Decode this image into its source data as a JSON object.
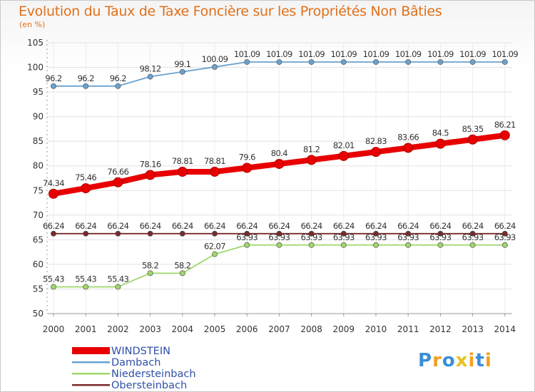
{
  "header": {
    "title": "Evolution du Taux de Taxe Foncière sur les Propriétés Non Bâties",
    "unit": "(en %)"
  },
  "logo": {
    "letters": [
      "P",
      "r",
      "o",
      "x",
      "i",
      "t",
      "i"
    ],
    "colors": [
      "#3a8fd6",
      "#f0a020",
      "#3a8fd6",
      "#e8c020",
      "#f0a020",
      "#3a8fd6",
      "#f0a020"
    ]
  },
  "chart_data": {
    "type": "line",
    "title": "Evolution du Taux de Taxe Foncière sur les Propriétés Non Bâties",
    "ylabel": "(en %)",
    "xlabel": "",
    "x": [
      "2000",
      "2001",
      "2002",
      "2003",
      "2004",
      "2005",
      "2006",
      "2007",
      "2008",
      "2009",
      "2010",
      "2011",
      "2012",
      "2013",
      "2014"
    ],
    "ylim": [
      50,
      105
    ],
    "yticks": [
      50,
      55,
      60,
      65,
      70,
      75,
      80,
      85,
      90,
      95,
      100,
      105
    ],
    "grid": true,
    "legend_position": "bottom-left",
    "series": [
      {
        "name": "WINDSTEIN",
        "color": "#e80000",
        "values": [
          74.34,
          75.46,
          76.66,
          78.16,
          78.81,
          78.81,
          79.6,
          80.4,
          81.2,
          82.01,
          82.83,
          83.66,
          84.5,
          85.35,
          86.21
        ],
        "labels": [
          "74.34",
          "75.46",
          "76.66",
          "78.16",
          "78.81",
          "78.81",
          "79.6",
          "80.4",
          "81.2",
          "82.01",
          "82.83",
          "83.66",
          "84.5",
          "85.35",
          "86.21"
        ]
      },
      {
        "name": "Dambach",
        "color": "#6aa2cf",
        "values": [
          96.2,
          96.2,
          96.2,
          98.12,
          99.1,
          100.09,
          101.09,
          101.09,
          101.09,
          101.09,
          101.09,
          101.09,
          101.09,
          101.09,
          101.09
        ],
        "labels": [
          "96.2",
          "96.2",
          "96.2",
          "98.12",
          "99.1",
          "100.09",
          "101.09",
          "101.09",
          "101.09",
          "101.09",
          "101.09",
          "101.09",
          "101.09",
          "101.09",
          "101.09"
        ]
      },
      {
        "name": "Niedersteinbach",
        "color": "#9ed86a",
        "values": [
          55.43,
          55.43,
          55.43,
          58.2,
          58.2,
          62.07,
          63.93,
          63.93,
          63.93,
          63.93,
          63.93,
          63.93,
          63.93,
          63.93,
          63.93
        ],
        "labels": [
          "55.43",
          "55.43",
          "55.43",
          "58.2",
          "58.2",
          "62.07",
          "63.93",
          "63.93",
          "63.93",
          "63.93",
          "63.93",
          "63.93",
          "63.93",
          "63.93",
          "63.93"
        ]
      },
      {
        "name": "Obersteinbach",
        "color": "#7a2a2a",
        "values": [
          66.24,
          66.24,
          66.24,
          66.24,
          66.24,
          66.24,
          66.24,
          66.24,
          66.24,
          66.24,
          66.24,
          66.24,
          66.24,
          66.24,
          66.24
        ],
        "labels": [
          "66.24",
          "66.24",
          "66.24",
          "66.24",
          "66.24",
          "66.24",
          "66.24",
          "66.24",
          "66.24",
          "66.24",
          "66.24",
          "66.24",
          "66.24",
          "66.24",
          "66.24"
        ]
      }
    ]
  }
}
